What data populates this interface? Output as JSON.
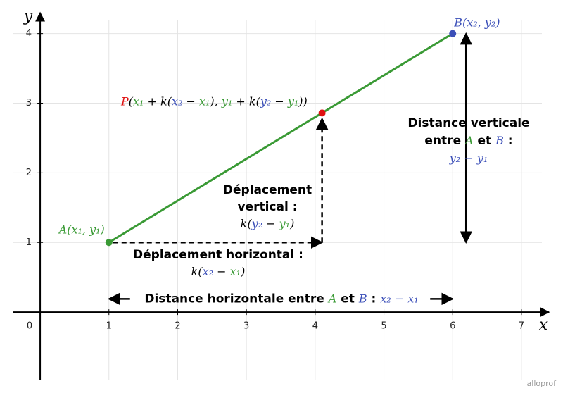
{
  "axes": {
    "x_label": "x",
    "y_label": "y",
    "xlim": [
      -0.4,
      7.4
    ],
    "ylim": [
      -0.98,
      4.3
    ],
    "xticks": [
      0,
      1,
      2,
      3,
      4,
      5,
      6,
      7
    ],
    "yticks": [
      1,
      2,
      3,
      4
    ],
    "grid": true
  },
  "points": [
    {
      "x": 1,
      "y": 1,
      "color": "#3a9a35",
      "label": [
        {
          "text": "A(x₁, y₁)",
          "color": "#3a9a35",
          "italic": true
        }
      ]
    },
    {
      "x": 4.1,
      "y": 2.86,
      "color": "#e01010",
      "label": [
        {
          "text": "P",
          "color": "#e01010",
          "italic": true
        },
        {
          "text": "(",
          "color": "#000000",
          "italic": true
        },
        {
          "text": "x₁",
          "color": "#3a9a35",
          "italic": true
        },
        {
          "text": " + k(",
          "color": "#000000",
          "italic": true
        },
        {
          "text": "x₂",
          "color": "#3b4fb8",
          "italic": true
        },
        {
          "text": " − ",
          "color": "#000000",
          "italic": true
        },
        {
          "text": "x₁",
          "color": "#3a9a35",
          "italic": true
        },
        {
          "text": "), ",
          "color": "#000000",
          "italic": true
        },
        {
          "text": "y₁",
          "color": "#3a9a35",
          "italic": true
        },
        {
          "text": " + k(",
          "color": "#000000",
          "italic": true
        },
        {
          "text": "y₂",
          "color": "#3b4fb8",
          "italic": true
        },
        {
          "text": " − ",
          "color": "#000000",
          "italic": true
        },
        {
          "text": "y₁",
          "color": "#3a9a35",
          "italic": true
        },
        {
          "text": "))",
          "color": "#000000",
          "italic": true
        }
      ]
    },
    {
      "x": 6,
      "y": 4,
      "color": "#3b4fb8",
      "label": [
        {
          "text": "B(x₂, y₂)",
          "color": "#3b4fb8",
          "italic": true
        }
      ]
    }
  ],
  "segment_color": "#3a9a35",
  "annotations": [
    {
      "lines": [
        [
          {
            "text": "Déplacement horizontal :",
            "color": "#000000",
            "italic": false
          }
        ],
        [
          {
            "text": "k(",
            "color": "#000000",
            "italic": true
          },
          {
            "text": "x₂",
            "color": "#3b4fb8",
            "italic": true
          },
          {
            "text": " − ",
            "color": "#000000",
            "italic": true
          },
          {
            "text": "x₁",
            "color": "#3a9a35",
            "italic": true
          },
          {
            "text": ")",
            "color": "#000000",
            "italic": true
          }
        ]
      ]
    },
    {
      "lines": [
        [
          {
            "text": "Déplacement",
            "color": "#000000",
            "italic": false
          }
        ],
        [
          {
            "text": "vertical :",
            "color": "#000000",
            "italic": false
          }
        ],
        [
          {
            "text": "k(",
            "color": "#000000",
            "italic": true
          },
          {
            "text": "y₂",
            "color": "#3b4fb8",
            "italic": true
          },
          {
            "text": " − ",
            "color": "#000000",
            "italic": true
          },
          {
            "text": "y₁",
            "color": "#3a9a35",
            "italic": true
          },
          {
            "text": ")",
            "color": "#000000",
            "italic": true
          }
        ]
      ]
    },
    {
      "lines": [
        [
          {
            "text": "Distance verticale",
            "color": "#000000",
            "italic": false
          }
        ],
        [
          {
            "text": "entre ",
            "color": "#000000",
            "italic": false
          },
          {
            "text": "A",
            "color": "#3a9a35",
            "italic": true
          },
          {
            "text": " et ",
            "color": "#000000",
            "italic": false
          },
          {
            "text": "B",
            "color": "#3b4fb8",
            "italic": true
          },
          {
            "text": " :",
            "color": "#000000",
            "italic": false
          }
        ],
        [
          {
            "text": "y₂ − y₁",
            "color": "#3b4fb8",
            "italic": true
          }
        ]
      ]
    },
    {
      "lines": [
        [
          {
            "text": "Distance horizontale entre ",
            "color": "#000000",
            "italic": false
          },
          {
            "text": "A",
            "color": "#3a9a35",
            "italic": true
          },
          {
            "text": " et ",
            "color": "#000000",
            "italic": false
          },
          {
            "text": "B",
            "color": "#3b4fb8",
            "italic": true
          },
          {
            "text": " :  ",
            "color": "#000000",
            "italic": false
          },
          {
            "text": "x₂ − x₁",
            "color": "#3b4fb8",
            "italic": true
          }
        ]
      ]
    }
  ],
  "watermark": "alloprof"
}
